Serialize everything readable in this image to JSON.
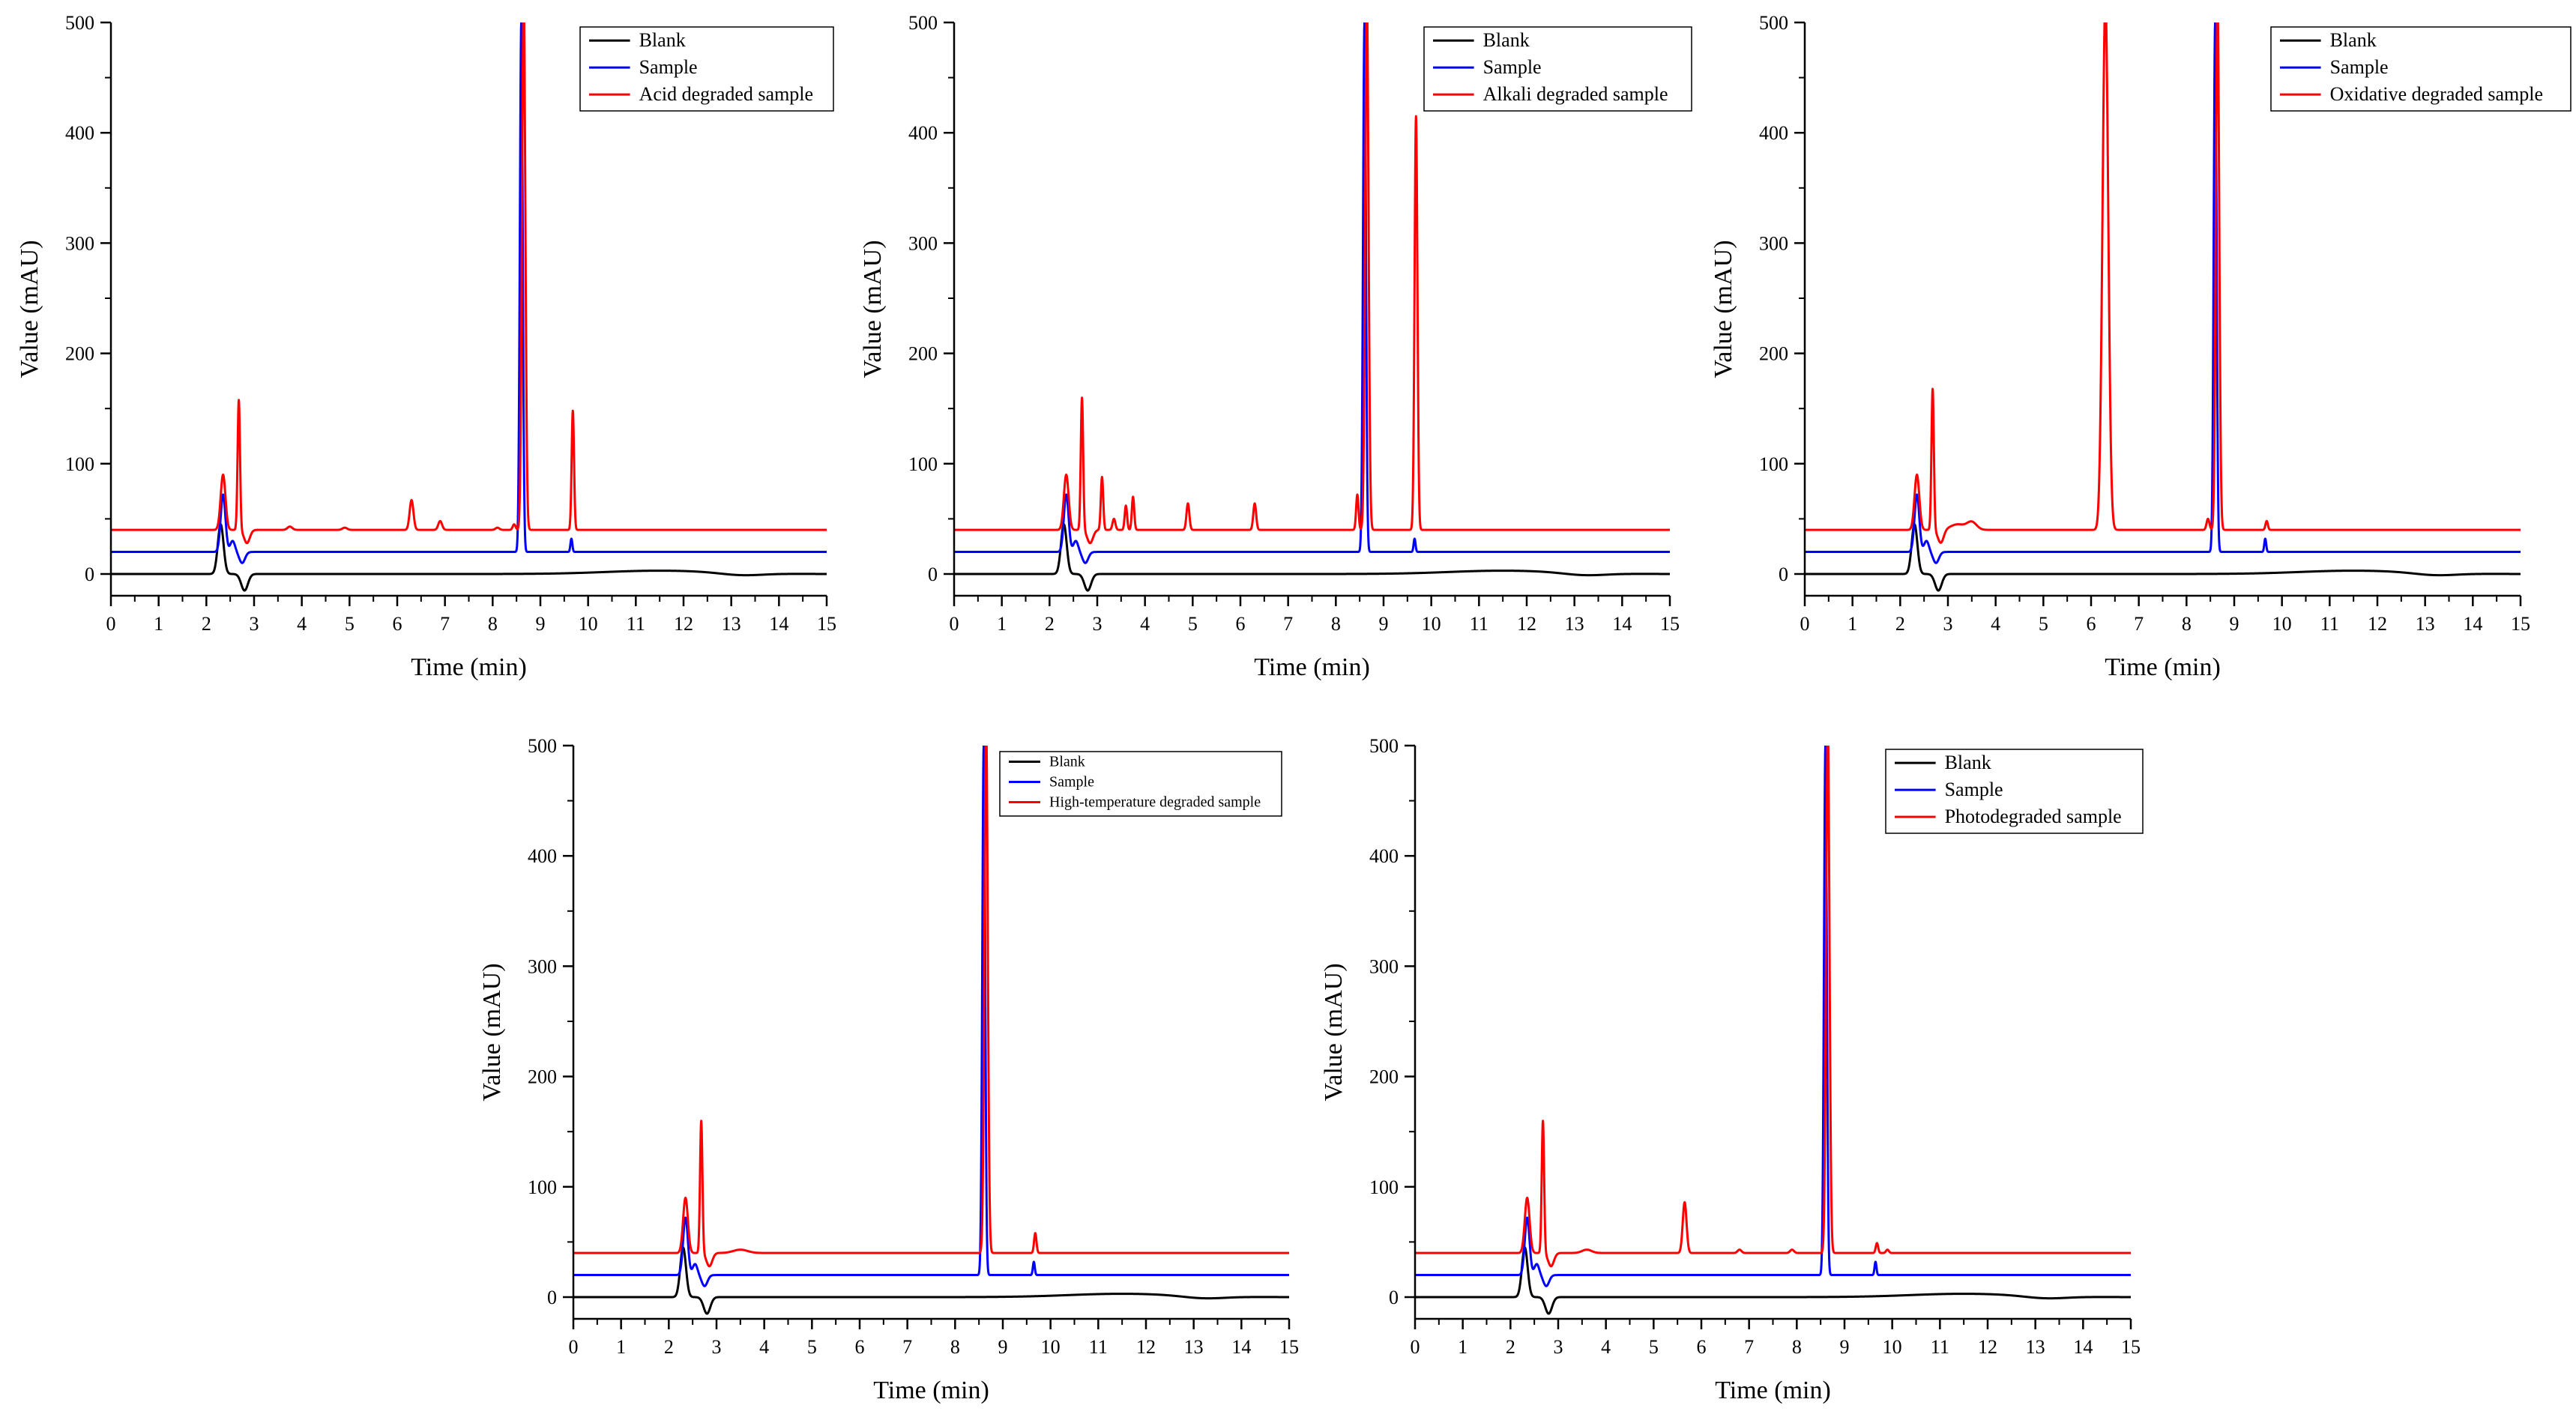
{
  "figure": {
    "description_free": true,
    "series_colors": {
      "Blank": "#000000",
      "Sample": "#0000ff",
      "Degraded": "#ff0000"
    }
  },
  "chart_data": [
    {
      "type": "line",
      "title": "",
      "xlabel": "Time (min)",
      "ylabel": "Value (mAU)",
      "xlim": [
        0,
        15
      ],
      "ylim": [
        0,
        500
      ],
      "xticks": [
        0,
        1,
        2,
        3,
        4,
        5,
        6,
        7,
        8,
        9,
        10,
        11,
        12,
        13,
        14,
        15
      ],
      "yticks": [
        0,
        100,
        200,
        300,
        400,
        500
      ],
      "legend": [
        "Blank",
        "Sample",
        "Acid degraded sample"
      ],
      "legend_position": "top-right",
      "series": [
        {
          "name": "Blank",
          "color": "#000000",
          "baseline": 0,
          "drift": true,
          "peaks": [
            [
              2.3,
              45,
              0.06
            ],
            [
              2.8,
              -15,
              0.07
            ]
          ]
        },
        {
          "name": "Sample",
          "color": "#0000ff",
          "baseline": 20,
          "peaks": [
            [
              2.35,
              52,
              0.05
            ],
            [
              2.55,
              10,
              0.05
            ],
            [
              2.75,
              -10,
              0.06
            ],
            [
              8.6,
              480,
              0.03
            ],
            [
              9.65,
              12,
              0.02
            ]
          ]
        },
        {
          "name": "Acid degraded sample",
          "color": "#ff0000",
          "baseline": 40,
          "peaks": [
            [
              2.35,
              50,
              0.05
            ],
            [
              2.68,
              118,
              0.025
            ],
            [
              2.85,
              -12,
              0.06
            ],
            [
              3.75,
              3,
              0.05
            ],
            [
              4.9,
              2,
              0.05
            ],
            [
              6.3,
              27,
              0.04
            ],
            [
              6.9,
              8,
              0.04
            ],
            [
              8.1,
              2,
              0.04
            ],
            [
              8.45,
              5,
              0.03
            ],
            [
              8.65,
              480,
              0.035
            ],
            [
              9.68,
              108,
              0.025
            ]
          ]
        }
      ]
    },
    {
      "type": "line",
      "title": "",
      "xlabel": "Time (min)",
      "ylabel": "Value (mAU)",
      "xlim": [
        0,
        15
      ],
      "ylim": [
        0,
        500
      ],
      "xticks": [
        0,
        1,
        2,
        3,
        4,
        5,
        6,
        7,
        8,
        9,
        10,
        11,
        12,
        13,
        14,
        15
      ],
      "yticks": [
        0,
        100,
        200,
        300,
        400,
        500
      ],
      "legend": [
        "Blank",
        "Sample",
        "Alkali degraded sample"
      ],
      "legend_position": "top-right",
      "series": [
        {
          "name": "Blank",
          "color": "#000000",
          "baseline": 0,
          "drift": true,
          "peaks": [
            [
              2.3,
              45,
              0.06
            ],
            [
              2.8,
              -15,
              0.07
            ]
          ]
        },
        {
          "name": "Sample",
          "color": "#0000ff",
          "baseline": 20,
          "peaks": [
            [
              2.35,
              52,
              0.05
            ],
            [
              2.55,
              10,
              0.05
            ],
            [
              2.75,
              -10,
              0.06
            ],
            [
              8.6,
              480,
              0.03
            ],
            [
              9.65,
              12,
              0.02
            ]
          ]
        },
        {
          "name": "Alkali degraded sample",
          "color": "#ff0000",
          "baseline": 40,
          "peaks": [
            [
              2.35,
              50,
              0.05
            ],
            [
              2.68,
              120,
              0.025
            ],
            [
              2.85,
              -12,
              0.06
            ],
            [
              3.1,
              48,
              0.025
            ],
            [
              3.35,
              10,
              0.03
            ],
            [
              3.6,
              22,
              0.025
            ],
            [
              3.75,
              30,
              0.025
            ],
            [
              4.9,
              24,
              0.03
            ],
            [
              6.3,
              24,
              0.03
            ],
            [
              8.45,
              32,
              0.025
            ],
            [
              8.65,
              480,
              0.035
            ],
            [
              9.68,
              375,
              0.03
            ]
          ]
        }
      ]
    },
    {
      "type": "line",
      "title": "",
      "xlabel": "Time (min)",
      "ylabel": "Value (mAU)",
      "xlim": [
        0,
        15
      ],
      "ylim": [
        0,
        500
      ],
      "xticks": [
        0,
        1,
        2,
        3,
        4,
        5,
        6,
        7,
        8,
        9,
        10,
        11,
        12,
        13,
        14,
        15
      ],
      "yticks": [
        0,
        100,
        200,
        300,
        400,
        500
      ],
      "legend": [
        "Blank",
        "Sample",
        "Oxidative degraded sample"
      ],
      "legend_position": "top-right",
      "series": [
        {
          "name": "Blank",
          "color": "#000000",
          "baseline": 0,
          "drift": true,
          "peaks": [
            [
              2.3,
              45,
              0.06
            ],
            [
              2.8,
              -15,
              0.07
            ]
          ]
        },
        {
          "name": "Sample",
          "color": "#0000ff",
          "baseline": 20,
          "peaks": [
            [
              2.35,
              52,
              0.05
            ],
            [
              2.55,
              10,
              0.05
            ],
            [
              2.75,
              -10,
              0.06
            ],
            [
              8.6,
              480,
              0.03
            ],
            [
              9.65,
              12,
              0.02
            ]
          ]
        },
        {
          "name": "Oxidative degraded sample",
          "color": "#ff0000",
          "baseline": 40,
          "peaks": [
            [
              2.35,
              50,
              0.05
            ],
            [
              2.68,
              128,
              0.025
            ],
            [
              2.85,
              -12,
              0.06
            ],
            [
              3.2,
              5,
              0.15
            ],
            [
              3.5,
              7,
              0.1
            ],
            [
              6.3,
              480,
              0.06
            ],
            [
              8.45,
              10,
              0.03
            ],
            [
              8.65,
              480,
              0.035
            ],
            [
              9.68,
              8,
              0.025
            ]
          ]
        }
      ]
    },
    {
      "type": "line",
      "title": "",
      "xlabel": "Time (min)",
      "ylabel": "Value (mAU)",
      "xlim": [
        0,
        15
      ],
      "ylim": [
        0,
        500
      ],
      "xticks": [
        0,
        1,
        2,
        3,
        4,
        5,
        6,
        7,
        8,
        9,
        10,
        11,
        12,
        13,
        14,
        15
      ],
      "yticks": [
        0,
        100,
        200,
        300,
        400,
        500
      ],
      "legend": [
        "Blank",
        "Sample",
        "High-temperature degraded sample"
      ],
      "legend_position": "top-right",
      "series": [
        {
          "name": "Blank",
          "color": "#000000",
          "baseline": 0,
          "drift": true,
          "peaks": [
            [
              2.3,
              45,
              0.06
            ],
            [
              2.8,
              -15,
              0.07
            ]
          ]
        },
        {
          "name": "Sample",
          "color": "#0000ff",
          "baseline": 20,
          "peaks": [
            [
              2.35,
              52,
              0.05
            ],
            [
              2.55,
              10,
              0.05
            ],
            [
              2.75,
              -10,
              0.06
            ],
            [
              8.6,
              480,
              0.03
            ],
            [
              9.65,
              12,
              0.02
            ]
          ]
        },
        {
          "name": "High-temperature degraded sample",
          "color": "#ff0000",
          "baseline": 40,
          "peaks": [
            [
              2.35,
              50,
              0.05
            ],
            [
              2.68,
              120,
              0.025
            ],
            [
              2.85,
              -12,
              0.06
            ],
            [
              3.5,
              3,
              0.15
            ],
            [
              8.65,
              480,
              0.035
            ],
            [
              9.68,
              18,
              0.025
            ]
          ]
        }
      ]
    },
    {
      "type": "line",
      "title": "",
      "xlabel": "Time (min)",
      "ylabel": "Value (mAU)",
      "xlim": [
        0,
        15
      ],
      "ylim": [
        0,
        500
      ],
      "xticks": [
        0,
        1,
        2,
        3,
        4,
        5,
        6,
        7,
        8,
        9,
        10,
        11,
        12,
        13,
        14,
        15
      ],
      "yticks": [
        0,
        100,
        200,
        300,
        400,
        500
      ],
      "legend": [
        "Blank",
        "Sample",
        "Photodegraded sample"
      ],
      "legend_position": "top-left",
      "series": [
        {
          "name": "Blank",
          "color": "#000000",
          "baseline": 0,
          "drift": true,
          "peaks": [
            [
              2.3,
              45,
              0.06
            ],
            [
              2.8,
              -15,
              0.07
            ]
          ]
        },
        {
          "name": "Sample",
          "color": "#0000ff",
          "baseline": 20,
          "peaks": [
            [
              2.35,
              52,
              0.05
            ],
            [
              2.55,
              10,
              0.05
            ],
            [
              2.75,
              -10,
              0.06
            ],
            [
              8.6,
              480,
              0.03
            ],
            [
              9.65,
              12,
              0.02
            ]
          ]
        },
        {
          "name": "Photodegraded sample",
          "color": "#ff0000",
          "baseline": 40,
          "peaks": [
            [
              2.35,
              50,
              0.05
            ],
            [
              2.68,
              120,
              0.025
            ],
            [
              2.85,
              -12,
              0.06
            ],
            [
              3.6,
              3,
              0.1
            ],
            [
              5.65,
              46,
              0.04
            ],
            [
              6.8,
              3,
              0.04
            ],
            [
              7.9,
              3,
              0.04
            ],
            [
              8.65,
              480,
              0.035
            ],
            [
              9.68,
              9,
              0.025
            ],
            [
              9.9,
              3,
              0.03
            ]
          ]
        }
      ]
    }
  ]
}
